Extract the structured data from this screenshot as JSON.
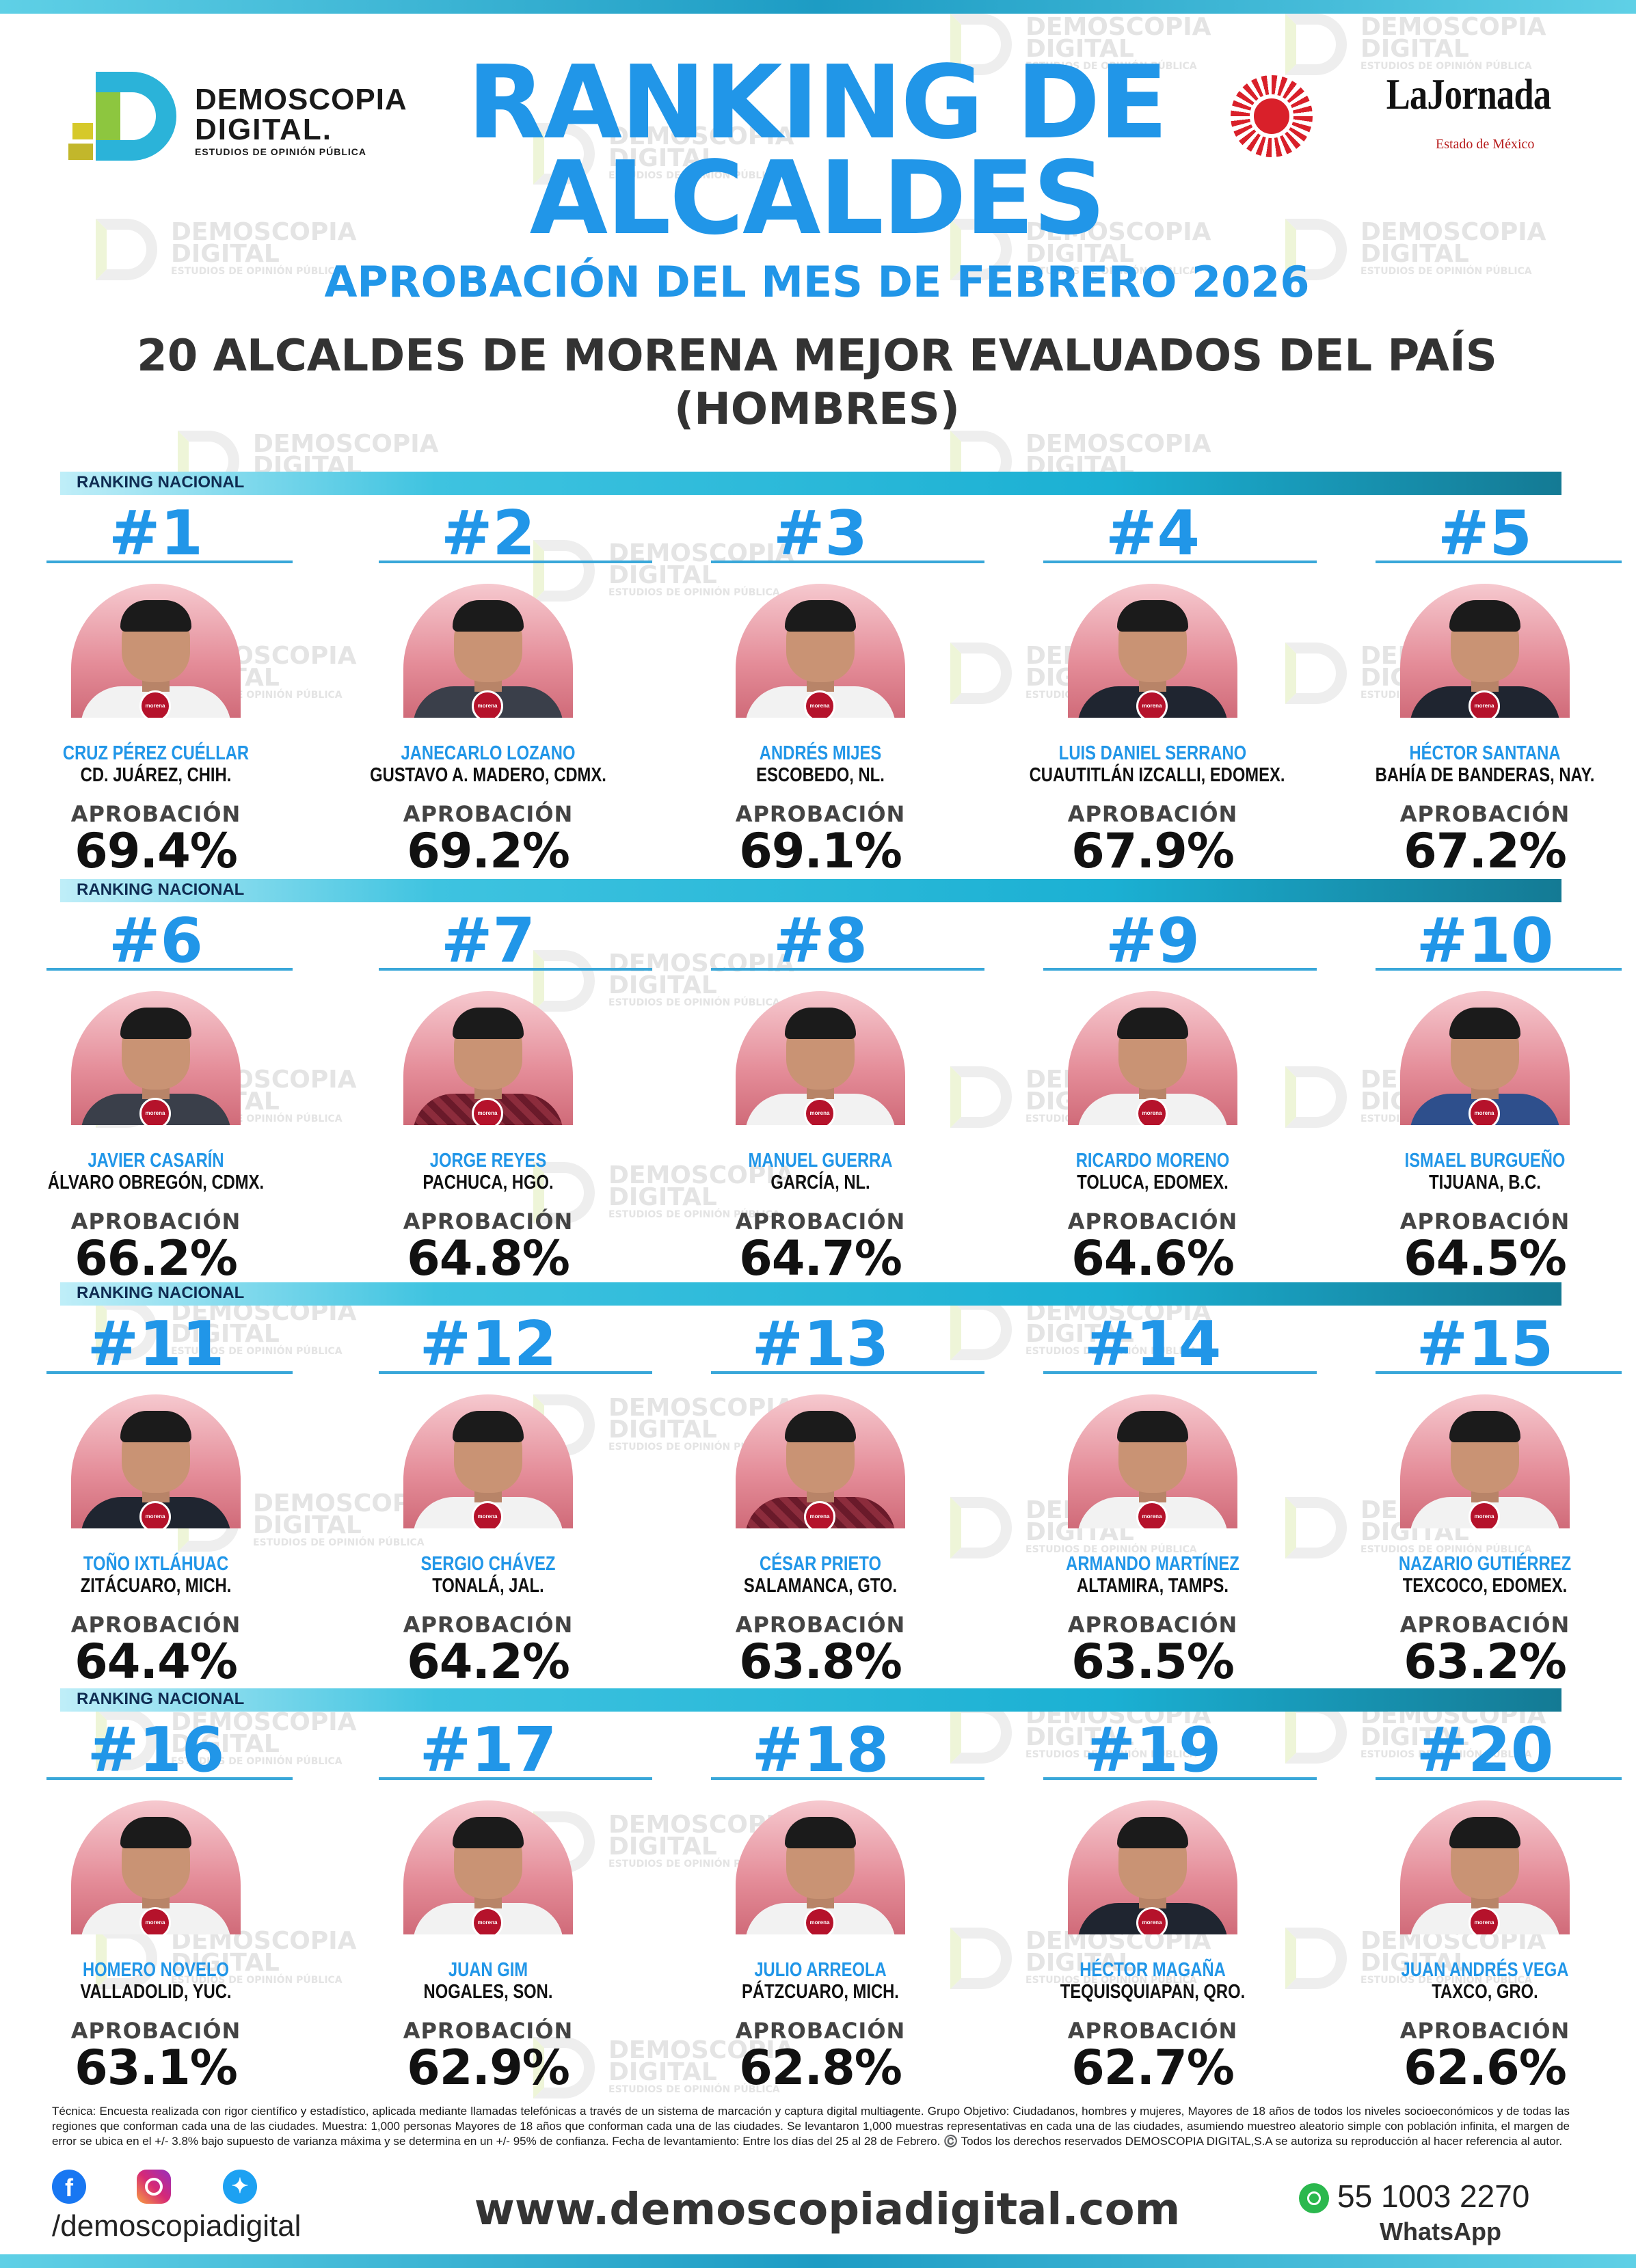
{
  "header": {
    "logo_left": {
      "line1": "DEMOSCOPIA",
      "line2": "DIGITAL.",
      "tagline": "ESTUDIOS DE OPINIÓN PÚBLICA"
    },
    "logo_right": {
      "name": "LaJornada",
      "sub": "Estado de México"
    },
    "title_line1": "RANKING DE",
    "title_line2": "ALCALDES",
    "subtitle": "APROBACIÓN DEL MES DE FEBRERO 2026",
    "heading_line1": "20 ALCALDES DE MORENA MEJOR EVALUADOS DEL PAÍS",
    "heading_line2": "(HOMBRES)"
  },
  "watermark": {
    "line1": "DEMOSCOPIA",
    "line2": "DIGITAL",
    "line3": "ESTUDIOS DE OPINIÓN PÚBLICA"
  },
  "section_label": "RANKING NACIONAL",
  "approval_label": "APROBACIÓN",
  "party_badge": "morena",
  "mayors": [
    {
      "rank": "#1",
      "name": "CRUZ PÉREZ CUÉLLAR",
      "city": "CD. JUÁREZ, CHIH.",
      "approval": "69.4%"
    },
    {
      "rank": "#2",
      "name": "JANECARLO LOZANO",
      "city": "GUSTAVO A. MADERO, CDMX.",
      "approval": "69.2%"
    },
    {
      "rank": "#3",
      "name": "ANDRÉS MIJES",
      "city": "ESCOBEDO, NL.",
      "approval": "69.1%"
    },
    {
      "rank": "#4",
      "name": "LUIS DANIEL SERRANO",
      "city": "CUAUTITLÁN IZCALLI, EDOMEX.",
      "approval": "67.9%"
    },
    {
      "rank": "#5",
      "name": "HÉCTOR SANTANA",
      "city": "BAHÍA DE BANDERAS, NAY.",
      "approval": "67.2%"
    },
    {
      "rank": "#6",
      "name": "JAVIER CASARÍN",
      "city": "ÁLVARO OBREGÓN, CDMX.",
      "approval": "66.2%"
    },
    {
      "rank": "#7",
      "name": "JORGE REYES",
      "city": "PACHUCA, HGO.",
      "approval": "64.8%"
    },
    {
      "rank": "#8",
      "name": "MANUEL GUERRA",
      "city": "GARCÍA, NL.",
      "approval": "64.7%"
    },
    {
      "rank": "#9",
      "name": "RICARDO MORENO",
      "city": "TOLUCA, EDOMEX.",
      "approval": "64.6%"
    },
    {
      "rank": "#10",
      "name": "ISMAEL BURGUEÑO",
      "city": "TIJUANA, B.C.",
      "approval": "64.5%"
    },
    {
      "rank": "#11",
      "name": "TOÑO IXTLÁHUAC",
      "city": "ZITÁCUARO, MICH.",
      "approval": "64.4%"
    },
    {
      "rank": "#12",
      "name": "SERGIO CHÁVEZ",
      "city": "TONALÁ, JAL.",
      "approval": "64.2%"
    },
    {
      "rank": "#13",
      "name": "CÉSAR PRIETO",
      "city": "SALAMANCA, GTO.",
      "approval": "63.8%"
    },
    {
      "rank": "#14",
      "name": "ARMANDO MARTÍNEZ",
      "city": "ALTAMIRA, TAMPS.",
      "approval": "63.5%"
    },
    {
      "rank": "#15",
      "name": "NAZARIO GUTIÉRREZ",
      "city": "TEXCOCO, EDOMEX.",
      "approval": "63.2%"
    },
    {
      "rank": "#16",
      "name": "HOMERO NOVELO",
      "city": "VALLADOLID, YUC.",
      "approval": "63.1%"
    },
    {
      "rank": "#17",
      "name": "JUAN GIM",
      "city": "NOGALES, SON.",
      "approval": "62.9%"
    },
    {
      "rank": "#18",
      "name": "JULIO ARREOLA",
      "city": "PÁTZCUARO, MICH.",
      "approval": "62.8%"
    },
    {
      "rank": "#19",
      "name": "HÉCTOR MAGAÑA",
      "city": "TEQUISQUIAPAN, QRO.",
      "approval": "62.7%"
    },
    {
      "rank": "#20",
      "name": "JUAN ANDRÉS VEGA",
      "city": "TAXCO, GRO.",
      "approval": "62.6%"
    }
  ],
  "footer": {
    "technical_note": "Técnica: Encuesta realizada con rigor científico y estadístico, aplicada mediante llamadas telefónicas a través de un sistema de marcación y captura digital multiagente.  Grupo Objetivo: Ciudadanos, hombres y mujeres, Mayores de 18 años de todos los niveles socioeconómicos y de todas las regiones que conforman cada una de las ciudades. Muestra: 1,000 personas Mayores de 18 años que conforman cada una de las ciudades. Se levantaron 1,000 muestras representativas en cada una de las ciudades, asumiendo muestreo aleatorio simple con población infinita, el margen de error se ubica en el +/- 3.8% bajo supuesto de varianza máxima y se determina en un +/- 95% de confianza. Fecha de levantamiento: Entre los días del 25 al 28 de Febrero. ©️ Todos los derechos reservados DEMOSCOPIA DIGITAL,S.A se autoriza su reproducción al hacer referencia al autor.",
    "social_handle": "/demoscopiadigital",
    "website": "www.demoscopiadigital.com",
    "phone": "55 1003 2270",
    "phone_label": "WhatsApp",
    "social_icons": [
      "facebook-icon",
      "instagram-icon",
      "twitter-icon"
    ]
  },
  "colors": {
    "accent_blue": "#2196e8",
    "bar_teal": "#1bb0d3",
    "morena_red": "#b5122b"
  }
}
